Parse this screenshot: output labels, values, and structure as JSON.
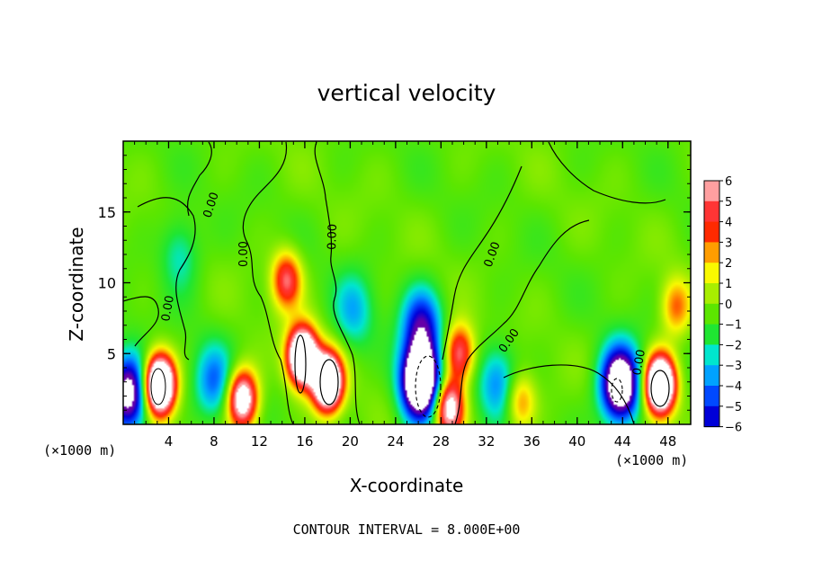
{
  "chart_data": {
    "type": "heatmap",
    "title": "vertical velocity",
    "xlabel": "X-coordinate",
    "ylabel": "Z-coordinate",
    "x_unit_label": "(×1000 m)",
    "y_unit_label": "(×1000 m)",
    "xlim": [
      0,
      50
    ],
    "ylim": [
      0,
      20
    ],
    "x_ticks": [
      4,
      8,
      12,
      16,
      20,
      24,
      28,
      32,
      36,
      40,
      44,
      48
    ],
    "y_ticks": [
      5,
      10,
      15
    ],
    "colorbar": {
      "ticks": [
        "6",
        "5",
        "4",
        "3",
        "2",
        "1",
        "0",
        "−1",
        "−2",
        "−3",
        "−4",
        "−5",
        "−6"
      ],
      "colors": [
        "#ff9fa0",
        "#ff3535",
        "#ff2a00",
        "#ff9d00",
        "#f9f900",
        "#a8ee00",
        "#5ce600",
        "#1fe632",
        "#00e6ce",
        "#00a2ff",
        "#0049ff",
        "#0000d8",
        "#6600a8"
      ]
    },
    "contour_interval_text": "CONTOUR INTERVAL = 8.000E+00",
    "contour_labels": [
      "0.00",
      "0.00",
      "0.00",
      "0.00",
      "0.00",
      "0.00",
      "0.00"
    ],
    "features": [
      {
        "kind": "updraft",
        "x": 3.2,
        "z": 2.8,
        "peak": 14
      },
      {
        "kind": "updraft",
        "x": 10.5,
        "z": 1.8,
        "peak": 9
      },
      {
        "kind": "updraft",
        "x": 14.4,
        "z": 10.2,
        "peak": 5.5
      },
      {
        "kind": "updraft",
        "x": 15.8,
        "z": 4.8,
        "peak": 13
      },
      {
        "kind": "updraft",
        "x": 18,
        "z": 3,
        "peak": 13
      },
      {
        "kind": "updraft",
        "x": 29.6,
        "z": 5,
        "peak": 6
      },
      {
        "kind": "updraft",
        "x": 28.7,
        "z": 1.2,
        "peak": 8
      },
      {
        "kind": "updraft",
        "x": 35,
        "z": 1.6,
        "peak": 3.4
      },
      {
        "kind": "updraft",
        "x": 47.3,
        "z": 2.8,
        "peak": 14
      },
      {
        "kind": "updraft",
        "x": 48.7,
        "z": 8.3,
        "peak": 3.5
      },
      {
        "kind": "downdraft",
        "x": 0.5,
        "z": 2.2,
        "peak": -8
      },
      {
        "kind": "downdraft",
        "x": 8,
        "z": 3,
        "peak": -3.5
      },
      {
        "kind": "downdraft",
        "x": 26.3,
        "z": 7,
        "peak": -5
      },
      {
        "kind": "downdraft",
        "x": 26.2,
        "z": 3,
        "peak": -12
      },
      {
        "kind": "downdraft",
        "x": 43.8,
        "z": 2.8,
        "peak": -10
      },
      {
        "kind": "downdraft",
        "x": 20.3,
        "z": 8,
        "peak": -2.6
      },
      {
        "kind": "downdraft",
        "x": 33,
        "z": 3,
        "peak": -3.2
      },
      {
        "kind": "downdraft",
        "x": 5,
        "z": 12,
        "peak": -2.2
      }
    ]
  }
}
